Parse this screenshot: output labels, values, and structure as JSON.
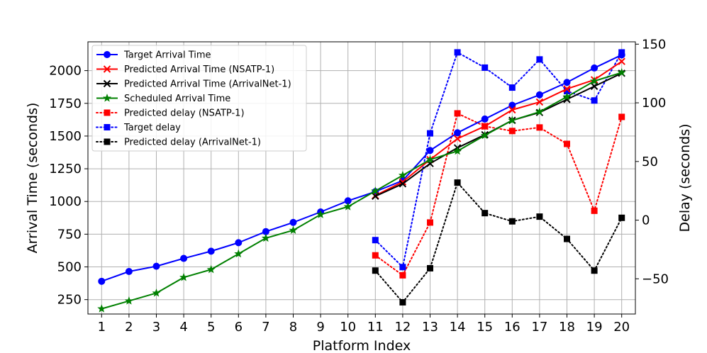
{
  "chart_data": {
    "type": "line",
    "xlabel": "Platform Index",
    "ylabel_left": "Arrival Time (seconds)",
    "ylabel_right": "Delay (seconds)",
    "x": [
      1,
      2,
      3,
      4,
      5,
      6,
      7,
      8,
      9,
      10,
      11,
      12,
      13,
      14,
      15,
      16,
      17,
      18,
      19,
      20
    ],
    "x_tick_labels": [
      "1",
      "2",
      "3",
      "4",
      "5",
      "6",
      "7",
      "8",
      "9",
      "10",
      "11",
      "12",
      "13",
      "14",
      "15",
      "16",
      "17",
      "18",
      "19",
      "20"
    ],
    "xlim": [
      0.5,
      20.5
    ],
    "ylim_left": [
      140,
      2220
    ],
    "yticks_left": [
      250,
      500,
      750,
      1000,
      1250,
      1500,
      1750,
      2000
    ],
    "ytick_labels_left": [
      "250",
      "500",
      "750",
      "1000",
      "1250",
      "1500",
      "1750",
      "2000"
    ],
    "ylim_right": [
      -80,
      152
    ],
    "yticks_right": [
      -50,
      0,
      50,
      100,
      150
    ],
    "ytick_labels_right": [
      "−50",
      "0",
      "50",
      "100",
      "150"
    ],
    "grid": true,
    "legend_position": "top-left",
    "series": [
      {
        "name": "Target Arrival Time",
        "axis": "left",
        "color": "#0000ff",
        "linestyle": "solid",
        "marker": "circle",
        "x": [
          1,
          2,
          3,
          4,
          5,
          6,
          7,
          8,
          9,
          10,
          11,
          12,
          13,
          14,
          15,
          16,
          17,
          18,
          19,
          20
        ],
        "values": [
          390,
          465,
          505,
          565,
          620,
          685,
          770,
          840,
          920,
          1005,
          1075,
          1160,
          1390,
          1525,
          1630,
          1735,
          1815,
          1910,
          2020,
          2120
        ]
      },
      {
        "name": "Predicted Arrival Time (NSATP-1)",
        "axis": "left",
        "color": "#ff0000",
        "linestyle": "solid",
        "marker": "x",
        "x": [
          11,
          12,
          13,
          14,
          15,
          16,
          17,
          18,
          19,
          20
        ],
        "values": [
          1045,
          1150,
          1320,
          1480,
          1575,
          1700,
          1760,
          1860,
          1930,
          2070
        ]
      },
      {
        "name": "Predicted Arrival Time (ArrivalNet-1)",
        "axis": "left",
        "color": "#000000",
        "linestyle": "solid",
        "marker": "x",
        "x": [
          11,
          12,
          13,
          14,
          15,
          16,
          17,
          18,
          19,
          20
        ],
        "values": [
          1040,
          1135,
          1290,
          1410,
          1510,
          1620,
          1680,
          1780,
          1880,
          1980
        ]
      },
      {
        "name": "Scheduled Arrival Time",
        "axis": "left",
        "color": "#008000",
        "linestyle": "solid",
        "marker": "star",
        "x": [
          1,
          2,
          3,
          4,
          5,
          6,
          7,
          8,
          9,
          10,
          11,
          12,
          13,
          14,
          15,
          16,
          17,
          18,
          19,
          20
        ],
        "values": [
          180,
          240,
          300,
          420,
          480,
          600,
          720,
          780,
          900,
          960,
          1080,
          1200,
          1320,
          1385,
          1505,
          1620,
          1685,
          1800,
          1920,
          1985
        ]
      },
      {
        "name": "Predicted delay (NSATP-1)",
        "axis": "right",
        "color": "#ff0000",
        "linestyle": "dotted",
        "marker": "square",
        "x": [
          11,
          12,
          13,
          14,
          15,
          16,
          17,
          18,
          19,
          20
        ],
        "values": [
          -30,
          -47,
          -2,
          91,
          80,
          76,
          79,
          65,
          8,
          88
        ]
      },
      {
        "name": "Target delay",
        "axis": "right",
        "color": "#0000ff",
        "linestyle": "dotted",
        "marker": "square",
        "x": [
          11,
          12,
          13,
          14,
          15,
          16,
          17,
          18,
          19,
          20
        ],
        "values": [
          -17,
          -40,
          74,
          143,
          130,
          113,
          137,
          110,
          102,
          143
        ]
      },
      {
        "name": "Predicted delay (ArrivalNet-1)",
        "axis": "right",
        "color": "#000000",
        "linestyle": "dotted",
        "marker": "square",
        "x": [
          11,
          12,
          13,
          14,
          15,
          16,
          17,
          18,
          19,
          20
        ],
        "values": [
          -43,
          -70,
          -41,
          32,
          6,
          -1,
          3,
          -16,
          -43,
          2
        ]
      }
    ]
  }
}
